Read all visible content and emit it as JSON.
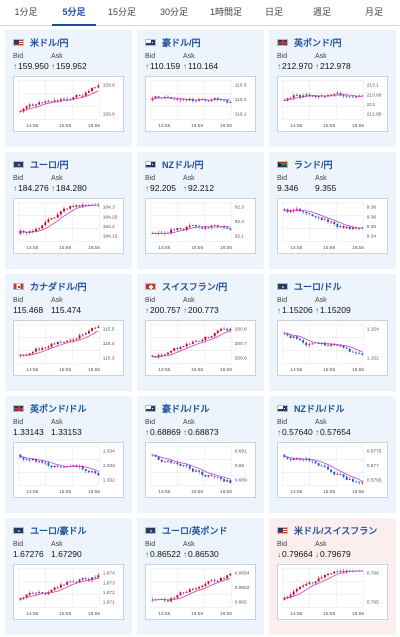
{
  "tabs": [
    {
      "label": "1分足"
    },
    {
      "label": "5分足"
    },
    {
      "label": "15分足"
    },
    {
      "label": "30分足"
    },
    {
      "label": "1時間足"
    },
    {
      "label": "日足"
    },
    {
      "label": "週足"
    },
    {
      "label": "月足"
    }
  ],
  "active_tab": 1,
  "bid_label": "Bid",
  "ask_label": "Ask",
  "x_ticks": [
    "14:55",
    "15:55",
    "16:55"
  ],
  "colors": {
    "accent": "#1a4fa0",
    "up_arrow": "#1a7f3c",
    "down_arrow": "#c0392b",
    "candle_up": "#d0021b",
    "candle_down": "#1f4fd8",
    "ma_line": "#c93bc9"
  },
  "cards": [
    {
      "pair": "米ドル/円",
      "flag": "us-flag-icon",
      "bid": "159.950",
      "ask": "159.952",
      "dir": "up",
      "bg": "blue",
      "y_ticks": [
        "159.8",
        "159.6"
      ],
      "trend": "up"
    },
    {
      "pair": "豪ドル/円",
      "flag": "au-flag-icon",
      "bid": "110.159",
      "ask": "110.164",
      "dir": "up",
      "bg": "blue",
      "y_ticks": [
        "110.3",
        "110.2",
        "110.1"
      ],
      "trend": "flat"
    },
    {
      "pair": "英ポンド/円",
      "flag": "gb-flag-icon",
      "bid": "212.970",
      "ask": "212.978",
      "dir": "up",
      "bg": "blue",
      "y_ticks": [
        "213.1",
        "213.00",
        "213",
        "212.95"
      ],
      "trend": "flat"
    },
    {
      "pair": "ユーロ/円",
      "flag": "eu-flag-icon",
      "bid": "184.276",
      "ask": "184.280",
      "dir": "up",
      "bg": "blue",
      "y_ticks": [
        "184.3",
        "184.25",
        "184.2",
        "184.15"
      ],
      "trend": "up"
    },
    {
      "pair": "NZドル/円",
      "flag": "nz-flag-icon",
      "bid": "92.205",
      "ask": "92.212",
      "dir": "up",
      "bg": "blue",
      "y_ticks": [
        "92.3",
        "92.2",
        "92.1"
      ],
      "trend": "up"
    },
    {
      "pair": "ランド/円",
      "flag": "za-flag-icon",
      "bid": "9.346",
      "ask": "9.355",
      "dir": "none",
      "bg": "blue",
      "y_ticks": [
        "9.38",
        "9.36",
        "9.35",
        "9.34"
      ],
      "trend": "down"
    },
    {
      "pair": "カナダドル/円",
      "flag": "ca-flag-icon",
      "bid": "115.468",
      "ask": "115.474",
      "dir": "none",
      "bg": "blue",
      "y_ticks": [
        "115.5",
        "115.4",
        "115.3"
      ],
      "trend": "up"
    },
    {
      "pair": "スイスフラン/円",
      "flag": "ch-flag-icon",
      "bid": "200.757",
      "ask": "200.773",
      "dir": "up",
      "bg": "blue",
      "y_ticks": [
        "200.8",
        "200.7",
        "200.6"
      ],
      "trend": "up"
    },
    {
      "pair": "ユーロ/ドル",
      "flag": "eu-flag-icon",
      "bid": "1.15206",
      "ask": "1.15209",
      "dir": "up",
      "bg": "blue",
      "y_ticks": [
        "1.154",
        "1.152"
      ],
      "trend": "down"
    },
    {
      "pair": "英ポンド/ドル",
      "flag": "gb-flag-icon",
      "bid": "1.33143",
      "ask": "1.33153",
      "dir": "none",
      "bg": "blue",
      "y_ticks": [
        "1.334",
        "1.333",
        "1.332"
      ],
      "trend": "down"
    },
    {
      "pair": "豪ドル/ドル",
      "flag": "au-flag-icon",
      "bid": "0.68869",
      "ask": "0.68873",
      "dir": "up",
      "bg": "blue",
      "y_ticks": [
        "0.691",
        "0.69",
        "0.689"
      ],
      "trend": "down"
    },
    {
      "pair": "NZドル/ドル",
      "flag": "nz-flag-icon",
      "bid": "0.57640",
      "ask": "0.57654",
      "dir": "up",
      "bg": "blue",
      "y_ticks": [
        "0.5775",
        "0.577",
        "0.5765"
      ],
      "trend": "down"
    },
    {
      "pair": "ユーロ/豪ドル",
      "flag": "eu-flag-icon",
      "bid": "1.67276",
      "ask": "1.67290",
      "dir": "none",
      "bg": "blue",
      "y_ticks": [
        "1.674",
        "1.673",
        "1.672",
        "1.671"
      ],
      "trend": "up"
    },
    {
      "pair": "ユーロ/英ポンド",
      "flag": "eu-flag-icon",
      "bid": "0.86522",
      "ask": "0.86530",
      "dir": "up",
      "bg": "blue",
      "y_ticks": [
        "0.8654",
        "0.8652",
        "0.865"
      ],
      "trend": "up"
    },
    {
      "pair": "米ドル/スイスフラン",
      "flag": "us-flag-icon",
      "bid": "0.79664",
      "ask": "0.79679",
      "dir": "down",
      "bg": "red",
      "y_ticks": [
        "0.796",
        "0.795"
      ],
      "trend": "up"
    }
  ]
}
